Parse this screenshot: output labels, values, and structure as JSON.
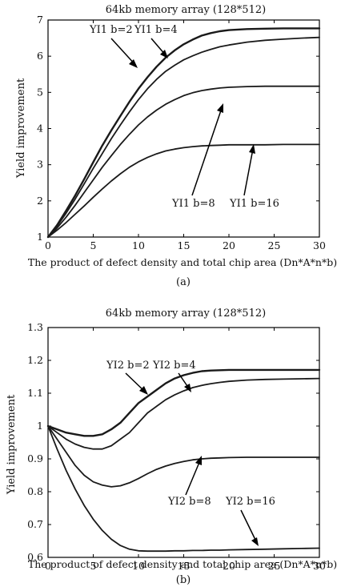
{
  "chart_data": [
    {
      "type": "line",
      "title": "64kb memory array (128*512)",
      "xlabel": "The product of defect density and total chip area (Dn*A*n*b)",
      "ylabel": "Yield improvement",
      "caption": "(a)",
      "xlim": [
        0,
        30
      ],
      "ylim": [
        1,
        7
      ],
      "xticks": [
        0,
        5,
        10,
        15,
        20,
        25,
        30
      ],
      "yticks": [
        1,
        2,
        3,
        4,
        5,
        6,
        7
      ],
      "series": [
        {
          "name": "YI1 b=2",
          "x": [
            0,
            1,
            2,
            3,
            4,
            5,
            6,
            7,
            8,
            9,
            10,
            11,
            12,
            13,
            14,
            15,
            16,
            17,
            18,
            19,
            20,
            22,
            24,
            26,
            28,
            30
          ],
          "y": [
            1.0,
            1.33,
            1.73,
            2.15,
            2.6,
            3.07,
            3.53,
            3.95,
            4.35,
            4.74,
            5.1,
            5.42,
            5.71,
            5.96,
            6.16,
            6.33,
            6.46,
            6.57,
            6.64,
            6.69,
            6.72,
            6.75,
            6.76,
            6.77,
            6.77,
            6.77
          ]
        },
        {
          "name": "YI1 b=4",
          "x": [
            0,
            1,
            2,
            3,
            4,
            5,
            6,
            7,
            8,
            9,
            10,
            11,
            12,
            13,
            14,
            15,
            16,
            17,
            18,
            19,
            20,
            22,
            24,
            26,
            28,
            30
          ],
          "y": [
            1.0,
            1.3,
            1.66,
            2.05,
            2.47,
            2.9,
            3.31,
            3.72,
            4.1,
            4.46,
            4.8,
            5.1,
            5.36,
            5.58,
            5.75,
            5.9,
            6.01,
            6.11,
            6.19,
            6.26,
            6.31,
            6.39,
            6.44,
            6.47,
            6.5,
            6.52
          ]
        },
        {
          "name": "YI1 b=8",
          "x": [
            0,
            1,
            2,
            3,
            4,
            5,
            6,
            7,
            8,
            9,
            10,
            11,
            12,
            13,
            14,
            15,
            16,
            17,
            18,
            19,
            20,
            22,
            24,
            26,
            28,
            30
          ],
          "y": [
            1.0,
            1.25,
            1.55,
            1.88,
            2.23,
            2.58,
            2.93,
            3.25,
            3.56,
            3.84,
            4.1,
            4.32,
            4.51,
            4.67,
            4.8,
            4.91,
            4.99,
            5.05,
            5.09,
            5.12,
            5.14,
            5.16,
            5.17,
            5.17,
            5.17,
            5.17
          ]
        },
        {
          "name": "YI1 b=16",
          "x": [
            0,
            1,
            2,
            3,
            4,
            5,
            6,
            7,
            8,
            9,
            10,
            11,
            12,
            13,
            14,
            15,
            16,
            17,
            18,
            19,
            20,
            22,
            24,
            26,
            28,
            30
          ],
          "y": [
            1.0,
            1.19,
            1.4,
            1.63,
            1.86,
            2.1,
            2.33,
            2.55,
            2.75,
            2.93,
            3.08,
            3.2,
            3.3,
            3.38,
            3.43,
            3.47,
            3.5,
            3.52,
            3.53,
            3.54,
            3.55,
            3.55,
            3.55,
            3.56,
            3.56,
            3.56
          ]
        }
      ]
    },
    {
      "type": "line",
      "title": "64kb memory array (128*512)",
      "xlabel": "The product of defect density and total chip area (Dn*A*n*b)",
      "ylabel": "Yield improvement",
      "caption": "(b)",
      "xlim": [
        0,
        30
      ],
      "ylim": [
        0.6,
        1.3
      ],
      "xticks": [
        0,
        5,
        10,
        15,
        20,
        25,
        30
      ],
      "yticks": [
        0.6,
        0.7,
        0.8,
        0.9,
        1,
        1.1,
        1.2,
        1.3
      ],
      "series": [
        {
          "name": "YI2 b=2",
          "x": [
            0,
            1,
            2,
            3,
            4,
            5,
            6,
            7,
            8,
            9,
            10,
            11,
            12,
            13,
            14,
            15,
            16,
            17,
            18,
            19,
            20,
            22,
            24,
            26,
            28,
            30
          ],
          "y": [
            1.0,
            0.99,
            0.98,
            0.975,
            0.97,
            0.97,
            0.975,
            0.99,
            1.01,
            1.04,
            1.07,
            1.09,
            1.11,
            1.13,
            1.145,
            1.155,
            1.162,
            1.167,
            1.169,
            1.17,
            1.171,
            1.171,
            1.171,
            1.171,
            1.171,
            1.171
          ]
        },
        {
          "name": "YI2 b=4",
          "x": [
            0,
            1,
            2,
            3,
            4,
            5,
            6,
            7,
            8,
            9,
            10,
            11,
            12,
            13,
            14,
            15,
            16,
            17,
            18,
            19,
            20,
            22,
            24,
            26,
            28,
            30
          ],
          "y": [
            1.0,
            0.98,
            0.96,
            0.945,
            0.935,
            0.93,
            0.93,
            0.94,
            0.96,
            0.98,
            1.01,
            1.04,
            1.06,
            1.08,
            1.095,
            1.107,
            1.117,
            1.124,
            1.129,
            1.133,
            1.136,
            1.14,
            1.142,
            1.143,
            1.144,
            1.145
          ]
        },
        {
          "name": "YI2 b=8",
          "x": [
            0,
            1,
            2,
            3,
            4,
            5,
            6,
            7,
            8,
            9,
            10,
            11,
            12,
            13,
            14,
            15,
            16,
            17,
            18,
            19,
            20,
            22,
            24,
            26,
            28,
            30
          ],
          "y": [
            1.0,
            0.96,
            0.92,
            0.88,
            0.85,
            0.83,
            0.82,
            0.815,
            0.818,
            0.827,
            0.84,
            0.855,
            0.868,
            0.878,
            0.886,
            0.892,
            0.897,
            0.9,
            0.902,
            0.903,
            0.904,
            0.905,
            0.905,
            0.905,
            0.905,
            0.905
          ]
        },
        {
          "name": "YI2 b=16",
          "x": [
            0,
            1,
            2,
            3,
            4,
            5,
            6,
            7,
            8,
            9,
            10,
            11,
            12,
            13,
            14,
            15,
            16,
            17,
            18,
            19,
            20,
            22,
            24,
            26,
            28,
            30
          ],
          "y": [
            1.0,
            0.93,
            0.865,
            0.808,
            0.758,
            0.716,
            0.682,
            0.655,
            0.636,
            0.625,
            0.62,
            0.619,
            0.619,
            0.619,
            0.62,
            0.62,
            0.621,
            0.621,
            0.622,
            0.622,
            0.623,
            0.624,
            0.625,
            0.626,
            0.627,
            0.628
          ]
        }
      ]
    }
  ]
}
